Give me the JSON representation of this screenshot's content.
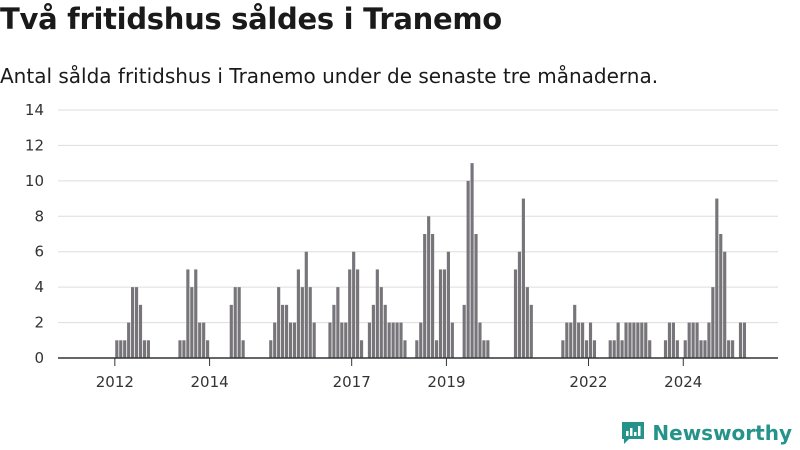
{
  "header": {
    "title": "Två fritidshus såldes i Tranemo",
    "subtitle": "Antal sålda fritidshus i Tranemo under de senaste tre månaderna."
  },
  "brand": {
    "name": "Newsworthy",
    "icon": "newsworthy-logo-icon",
    "color": "#25938a"
  },
  "colors": {
    "bar": "#77757a",
    "highlight": "#1a938b",
    "grid": "#dddddd",
    "axis": "#333333"
  },
  "chart_data": {
    "type": "bar",
    "title": "",
    "xlabel": "",
    "ylabel": "",
    "ylim": [
      0,
      14
    ],
    "yticks": [
      0,
      2,
      4,
      6,
      8,
      10,
      12,
      14
    ],
    "xticks": [
      {
        "label": "2012",
        "value": 2012.0
      },
      {
        "label": "2014",
        "value": 2014.0
      },
      {
        "label": "2017",
        "value": 2017.0
      },
      {
        "label": "2019",
        "value": 2019.0
      },
      {
        "label": "2022",
        "value": 2022.0
      },
      {
        "label": "2024",
        "value": 2024.0
      }
    ],
    "x_start": 2012.0,
    "step": 0.0833333,
    "values": [
      1,
      1,
      1,
      2,
      4,
      4,
      3,
      1,
      1,
      0,
      0,
      0,
      0,
      0,
      0,
      0,
      1,
      1,
      5,
      4,
      5,
      2,
      2,
      1,
      0,
      0,
      0,
      0,
      0,
      3,
      4,
      4,
      1,
      0,
      0,
      0,
      0,
      0,
      0,
      1,
      2,
      4,
      3,
      3,
      2,
      2,
      5,
      4,
      6,
      4,
      2,
      0,
      0,
      0,
      2,
      3,
      4,
      2,
      2,
      5,
      6,
      5,
      1,
      0,
      2,
      3,
      5,
      4,
      3,
      2,
      2,
      2,
      2,
      1,
      0,
      0,
      1,
      2,
      7,
      8,
      7,
      1,
      5,
      5,
      6,
      2,
      0,
      0,
      3,
      10,
      11,
      7,
      2,
      1,
      1,
      0,
      0,
      0,
      0,
      0,
      0,
      5,
      6,
      9,
      4,
      3,
      0,
      0,
      0,
      0,
      0,
      0,
      0,
      1,
      2,
      2,
      3,
      2,
      2,
      1,
      2,
      1,
      0,
      0,
      0,
      1,
      1,
      2,
      1,
      2,
      2,
      2,
      2,
      2,
      2,
      1,
      0,
      0,
      0,
      1,
      2,
      2,
      1,
      0,
      1,
      2,
      2,
      2,
      1,
      1,
      2,
      4,
      9,
      7,
      6,
      1,
      1,
      0,
      2,
      2
    ],
    "highlight_index": 160,
    "highlight_label": "2"
  }
}
